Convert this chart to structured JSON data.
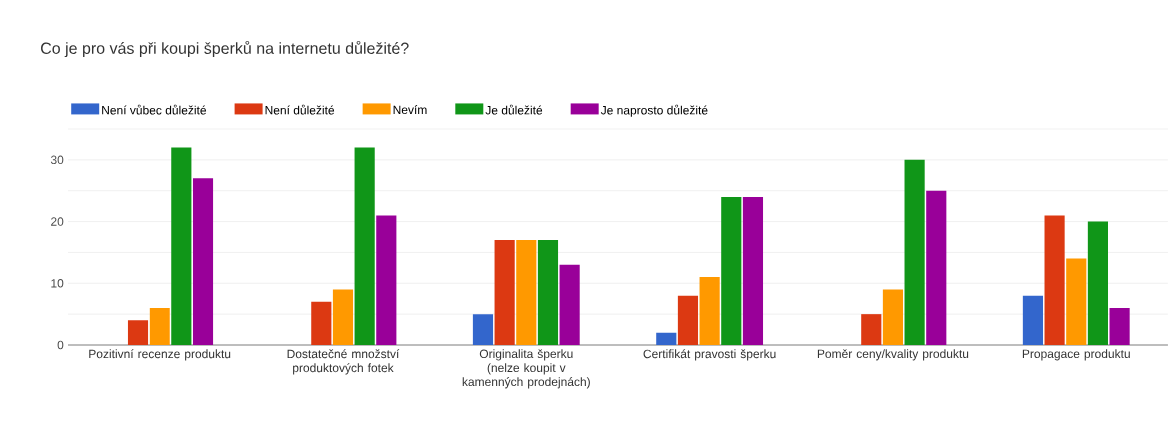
{
  "chart_data": {
    "type": "bar",
    "title": "Co je pro vás při koupi šperků na internetu důležité?",
    "categories": [
      "Pozitivní recenze produktu",
      "Dostatečné množství produktových fotek",
      "Originalita šperku (nelze koupit v kamenných prodejnách)",
      "Certifikát pravosti šperku",
      "Poměr ceny/kvality produktu",
      "Propagace produktu"
    ],
    "series": [
      {
        "name": "Není vůbec důležité",
        "color": "#3366cc",
        "values": [
          0,
          0,
          5,
          2,
          0,
          8
        ]
      },
      {
        "name": "Není důležité",
        "color": "#dc3912",
        "values": [
          4,
          7,
          17,
          8,
          5,
          21
        ]
      },
      {
        "name": "Nevím",
        "color": "#ff9900",
        "values": [
          6,
          9,
          17,
          11,
          9,
          14
        ]
      },
      {
        "name": "Je důležité",
        "color": "#109618",
        "values": [
          32,
          32,
          17,
          24,
          30,
          20
        ]
      },
      {
        "name": "Je naprosto důležité",
        "color": "#990099",
        "values": [
          27,
          21,
          13,
          24,
          25,
          6
        ]
      }
    ],
    "ylim": [
      0,
      35
    ],
    "yticks": [
      0,
      {
        "value": 5,
        "label": null
      },
      10,
      {
        "value": 15,
        "label": null
      },
      20,
      {
        "value": 25,
        "label": null
      },
      30,
      {
        "value": 35,
        "label": null
      }
    ],
    "grid": "y",
    "legend": "top"
  }
}
